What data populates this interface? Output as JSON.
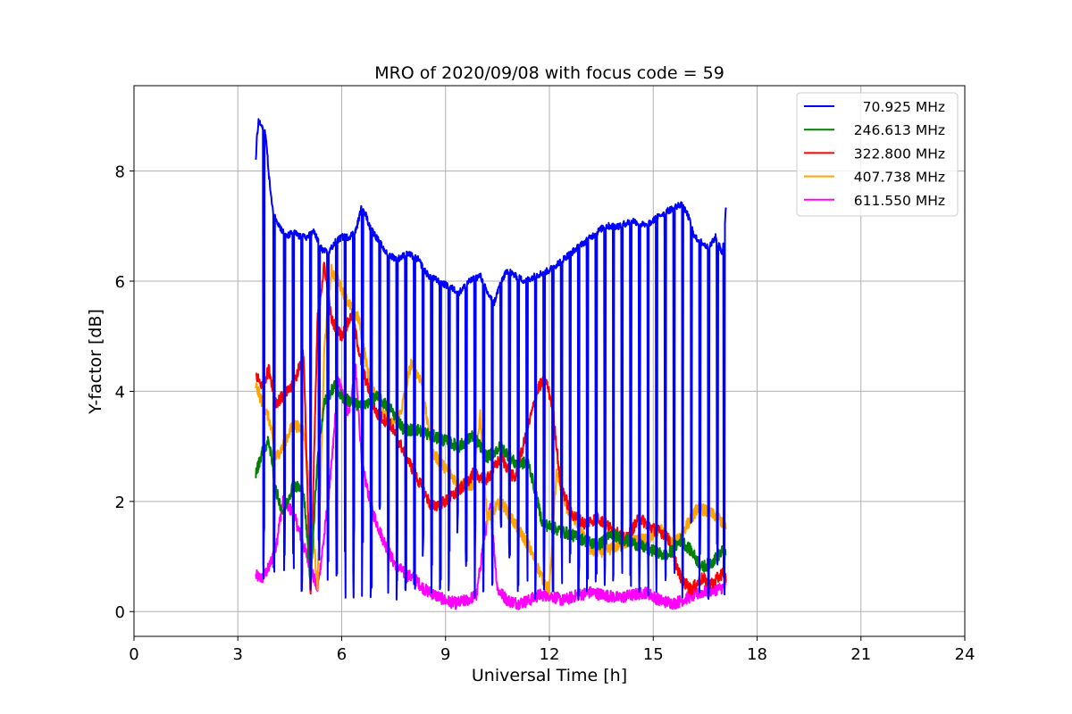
{
  "chart_data": {
    "type": "line",
    "title": "MRO of 2020/09/08 with focus code = 59",
    "xlabel": "Universal Time [h]",
    "ylabel": "Y-factor [dB]",
    "xlim": [
      0,
      24
    ],
    "ylim": [
      -0.45,
      9.55
    ],
    "x_ticks": [
      0,
      3,
      6,
      9,
      12,
      15,
      18,
      21,
      24
    ],
    "y_ticks": [
      0,
      2,
      4,
      6,
      8
    ],
    "grid": true,
    "legend_position": "top-right",
    "series": [
      {
        "name": "70.925 MHz",
        "color": "#0000ff",
        "x": [
          3.52,
          3.55,
          3.6,
          3.7,
          3.8,
          3.9,
          4.0,
          4.2,
          4.4,
          4.6,
          4.8,
          5.0,
          5.2,
          5.4,
          5.6,
          5.8,
          6.0,
          6.2,
          6.4,
          6.6,
          6.8,
          7.0,
          7.3,
          7.6,
          7.9,
          8.2,
          8.5,
          8.8,
          9.1,
          9.4,
          9.7,
          10.0,
          10.2,
          10.4,
          10.6,
          10.8,
          11.0,
          11.3,
          11.6,
          12.0,
          12.4,
          12.8,
          13.2,
          13.6,
          14.0,
          14.4,
          14.8,
          15.2,
          15.5,
          15.8,
          16.0,
          16.2,
          16.4,
          16.6,
          16.8,
          17.0,
          17.1
        ],
        "values": [
          8.2,
          8.6,
          8.9,
          8.8,
          8.7,
          7.9,
          7.3,
          7.0,
          6.8,
          6.9,
          6.8,
          6.8,
          6.9,
          6.6,
          6.5,
          6.7,
          6.8,
          6.8,
          6.9,
          7.4,
          7.0,
          6.8,
          6.5,
          6.4,
          6.5,
          6.4,
          6.1,
          6.0,
          5.9,
          5.8,
          6.0,
          6.1,
          5.8,
          5.6,
          6.0,
          6.2,
          6.1,
          6.0,
          6.1,
          6.2,
          6.4,
          6.6,
          6.8,
          7.0,
          7.0,
          7.1,
          7.0,
          7.2,
          7.3,
          7.4,
          7.2,
          6.8,
          6.7,
          6.6,
          6.8,
          6.5,
          7.3
        ],
        "dips": [
          3.75,
          4.05,
          4.35,
          4.6,
          4.85,
          5.1,
          5.35,
          5.6,
          5.85,
          6.1,
          6.35,
          6.6,
          6.85,
          7.1,
          7.35,
          7.6,
          7.85,
          8.1,
          8.35,
          8.6,
          8.85,
          9.1,
          9.35,
          9.6,
          9.85,
          10.1,
          10.35,
          10.6,
          10.85,
          11.1,
          11.35,
          11.6,
          11.85,
          12.1,
          12.35,
          12.6,
          12.85,
          13.1,
          13.35,
          13.6,
          13.85,
          14.1,
          14.35,
          14.6,
          14.85,
          15.1,
          15.35,
          15.6,
          15.85,
          16.1,
          16.35,
          16.6,
          16.85,
          17.05
        ]
      },
      {
        "name": "246.613 MHz",
        "color": "#008000",
        "x": [
          3.52,
          3.7,
          3.9,
          4.1,
          4.3,
          4.6,
          4.9,
          5.1,
          5.3,
          5.5,
          5.8,
          6.0,
          6.3,
          6.6,
          7.0,
          7.4,
          7.8,
          8.2,
          8.6,
          9.0,
          9.4,
          9.8,
          10.2,
          10.6,
          11.0,
          11.4,
          11.8,
          12.2,
          12.6,
          13.0,
          13.4,
          13.8,
          14.2,
          14.6,
          15.0,
          15.4,
          15.8,
          16.1,
          16.4,
          16.7,
          17.0,
          17.1
        ],
        "values": [
          2.5,
          2.9,
          3.1,
          2.2,
          1.8,
          2.3,
          2.2,
          0.5,
          2.8,
          3.8,
          4.1,
          3.9,
          3.8,
          3.7,
          3.9,
          3.7,
          3.3,
          3.3,
          3.2,
          3.1,
          3.0,
          3.2,
          2.8,
          3.0,
          2.7,
          2.7,
          1.6,
          1.5,
          1.4,
          1.3,
          1.2,
          1.4,
          1.3,
          1.2,
          1.1,
          1.0,
          1.3,
          1.1,
          0.8,
          0.9,
          1.1,
          1.0
        ]
      },
      {
        "name": "322.800 MHz",
        "color": "#ff0000",
        "x": [
          3.52,
          3.7,
          3.9,
          4.1,
          4.3,
          4.6,
          4.9,
          5.1,
          5.3,
          5.5,
          5.7,
          6.0,
          6.3,
          6.6,
          7.0,
          7.4,
          7.8,
          8.2,
          8.6,
          9.0,
          9.4,
          9.8,
          10.2,
          10.6,
          11.0,
          11.4,
          11.7,
          11.9,
          12.1,
          12.3,
          12.6,
          13.0,
          13.4,
          13.8,
          14.2,
          14.6,
          15.0,
          15.4,
          15.8,
          16.1,
          16.4,
          16.7,
          17.0,
          17.1
        ],
        "values": [
          4.3,
          4.1,
          4.4,
          3.8,
          3.9,
          4.1,
          4.7,
          0.2,
          5.3,
          6.3,
          5.3,
          5.0,
          5.4,
          4.4,
          3.6,
          3.4,
          2.9,
          2.4,
          1.9,
          2.0,
          2.2,
          2.5,
          2.4,
          2.8,
          2.4,
          3.4,
          4.1,
          4.2,
          3.7,
          2.4,
          1.8,
          1.6,
          1.7,
          1.5,
          1.3,
          1.7,
          1.5,
          1.4,
          0.6,
          0.4,
          0.6,
          0.5,
          0.7,
          0.6
        ]
      },
      {
        "name": "407.738 MHz",
        "color": "#ffa500",
        "x": [
          3.52,
          3.7,
          3.9,
          4.1,
          4.3,
          4.6,
          4.9,
          5.1,
          5.3,
          5.5,
          5.7,
          5.9,
          6.2,
          6.5,
          6.8,
          7.1,
          7.4,
          7.7,
          8.0,
          8.3,
          8.6,
          9.0,
          9.4,
          9.8,
          10.0,
          10.2,
          10.6,
          11.0,
          11.4,
          11.8,
          12.0,
          12.2,
          12.5,
          12.8,
          13.2,
          13.6,
          14.0,
          14.4,
          14.8,
          15.2,
          15.6,
          16.0,
          16.3,
          16.6,
          16.9,
          17.1
        ],
        "values": [
          4.1,
          3.8,
          3.5,
          2.8,
          3.0,
          3.4,
          3.3,
          2.1,
          0.4,
          4.8,
          6.2,
          6.0,
          5.6,
          5.3,
          4.2,
          3.8,
          3.4,
          3.6,
          4.5,
          4.2,
          2.9,
          2.6,
          2.3,
          2.3,
          3.6,
          1.7,
          2.0,
          1.6,
          1.2,
          0.6,
          0.4,
          2.5,
          1.9,
          1.6,
          1.1,
          1.1,
          1.2,
          1.3,
          1.3,
          1.5,
          1.2,
          1.6,
          1.9,
          1.8,
          1.7,
          1.5
        ]
      },
      {
        "name": "611.550 MHz",
        "color": "#ff00ff",
        "x": [
          3.52,
          3.7,
          3.9,
          4.1,
          4.3,
          4.6,
          4.9,
          5.1,
          5.3,
          5.5,
          5.7,
          5.9,
          6.2,
          6.4,
          6.6,
          6.9,
          7.2,
          7.5,
          7.8,
          8.1,
          8.4,
          8.7,
          9.0,
          9.3,
          9.6,
          9.9,
          10.1,
          10.3,
          10.5,
          10.8,
          11.1,
          11.4,
          11.7,
          12.0,
          12.4,
          12.8,
          13.2,
          13.6,
          14.0,
          14.4,
          14.8,
          15.2,
          15.6,
          16.0,
          16.4,
          16.8,
          17.1
        ],
        "values": [
          0.65,
          0.6,
          0.8,
          1.2,
          2.0,
          1.8,
          1.2,
          0.8,
          0.4,
          1.4,
          2.6,
          4.2,
          3.6,
          4.4,
          2.6,
          1.8,
          1.3,
          0.9,
          0.7,
          0.6,
          0.4,
          0.3,
          0.2,
          0.15,
          0.2,
          0.3,
          1.3,
          1.9,
          0.4,
          0.2,
          0.15,
          0.2,
          0.3,
          0.3,
          0.2,
          0.3,
          0.35,
          0.3,
          0.25,
          0.3,
          0.35,
          0.2,
          0.15,
          0.25,
          0.35,
          0.4,
          0.45
        ]
      }
    ]
  }
}
